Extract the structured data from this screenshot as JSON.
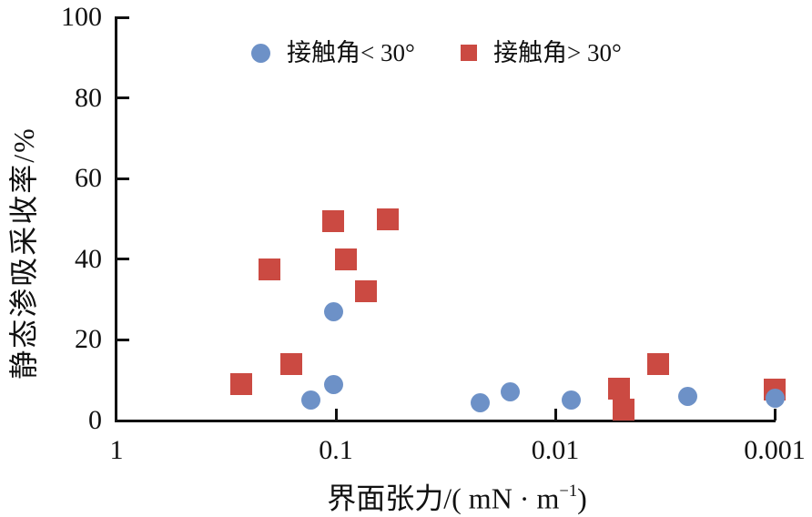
{
  "chart_data": {
    "type": "scatter",
    "title": "",
    "ylabel": "静态渗吸采收率/%",
    "xlabel_prefix": "界面张力/( mN · m",
    "xlabel_sup": "−1",
    "xlabel_suffix": ")",
    "x_scale": "log-reversed",
    "xlim": [
      1,
      0.001
    ],
    "ylim": [
      0,
      100
    ],
    "grid": false,
    "legend_position": "top-inside",
    "x_ticks": [
      1,
      0.1,
      0.01,
      0.001
    ],
    "x_tick_labels": [
      "1",
      "0.1",
      "0.01",
      "0.001"
    ],
    "y_ticks": [
      0,
      20,
      40,
      60,
      80,
      100
    ],
    "axis_color": "#111111",
    "series": [
      {
        "name": "接触角< 30°",
        "marker": "circle",
        "color": "#6d91c7",
        "points": [
          [
            0.13,
            5
          ],
          [
            0.102,
            9
          ],
          [
            0.102,
            27
          ],
          [
            0.022,
            4.5
          ],
          [
            0.016,
            7
          ],
          [
            0.0085,
            5
          ],
          [
            0.0025,
            6
          ],
          [
            0.001,
            5.5
          ]
        ]
      },
      {
        "name": "接触角> 30°",
        "marker": "square",
        "color": "#cb4a42",
        "points": [
          [
            0.27,
            9
          ],
          [
            0.2,
            37.5
          ],
          [
            0.16,
            14
          ],
          [
            0.103,
            49.5
          ],
          [
            0.09,
            40
          ],
          [
            0.073,
            32
          ],
          [
            0.058,
            50
          ],
          [
            0.0051,
            8
          ],
          [
            0.0049,
            2.7
          ],
          [
            0.0034,
            14
          ],
          [
            0.001,
            7.7
          ]
        ]
      }
    ]
  }
}
